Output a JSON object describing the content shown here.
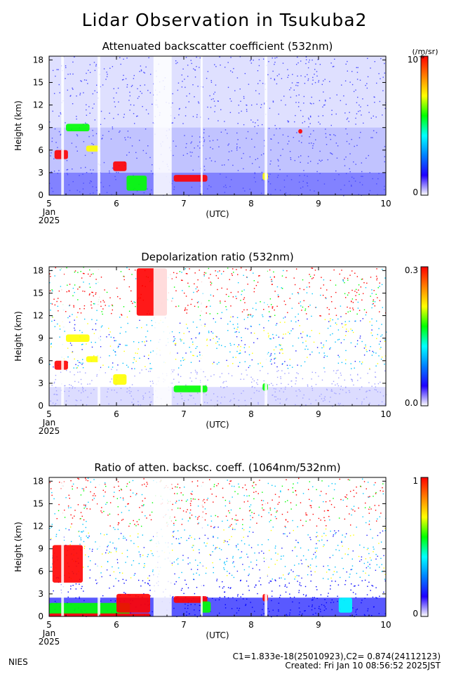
{
  "main_title": "Lidar Observation in Tsukuba2",
  "footer": {
    "org": "NIES",
    "calib": "C1=1.833e-18(25010923),C2= 0.874(24112123)",
    "created": "Created: Fri Jan 10 08:56:52 2025JST"
  },
  "colors": {
    "scale": [
      "#ffffff",
      "#c8c8ff",
      "#0000ff",
      "#00ffff",
      "#00ff00",
      "#ffff00",
      "#ff0000"
    ]
  },
  "chart_data": [
    {
      "type": "heatmap",
      "title": "Attenuated backscatter coefficient (532nm)",
      "ylabel": "Height (km)",
      "xlabel": "(UTC)",
      "x_ticks": [
        "5",
        "6",
        "7",
        "8",
        "9",
        "10"
      ],
      "x_sublabels": [
        "Jan",
        "2025"
      ],
      "y_ticks": [
        "0",
        "3",
        "6",
        "9",
        "12",
        "15",
        "18"
      ],
      "xlim": [
        5,
        10
      ],
      "ylim": [
        0,
        18.5
      ],
      "colorbar": {
        "top_label": "10",
        "bottom_label": "0",
        "unit": "(/m/sr)",
        "exponent": "-6"
      },
      "features": [
        {
          "x0": 5.08,
          "x1": 5.28,
          "y0": 4.8,
          "y1": 6.0,
          "level": 6
        },
        {
          "x0": 5.25,
          "x1": 5.6,
          "y0": 8.5,
          "y1": 9.5,
          "level": 4
        },
        {
          "x0": 5.55,
          "x1": 5.75,
          "y0": 5.8,
          "y1": 6.6,
          "level": 5
        },
        {
          "x0": 5.95,
          "x1": 6.15,
          "y0": 3.2,
          "y1": 4.5,
          "level": 6
        },
        {
          "x0": 6.15,
          "x1": 6.45,
          "y0": 0.6,
          "y1": 2.6,
          "level": 4
        },
        {
          "x0": 6.85,
          "x1": 7.35,
          "y0": 1.8,
          "y1": 2.7,
          "level": 6
        },
        {
          "x0": 8.17,
          "x1": 8.25,
          "y0": 2.0,
          "y1": 3.0,
          "level": 5
        },
        {
          "x0": 8.7,
          "x1": 8.76,
          "y0": 8.2,
          "y1": 8.8,
          "level": 6
        }
      ],
      "gaps": [
        [
          5.18,
          5.22
        ],
        [
          5.72,
          5.76
        ],
        [
          6.55,
          6.82
        ],
        [
          7.25,
          7.28
        ],
        [
          8.2,
          8.24
        ]
      ]
    },
    {
      "type": "heatmap",
      "title": "Depolarization ratio (532nm)",
      "ylabel": "Height (km)",
      "xlabel": "(UTC)",
      "x_ticks": [
        "5",
        "6",
        "7",
        "8",
        "9",
        "10"
      ],
      "x_sublabels": [
        "Jan",
        "2025"
      ],
      "y_ticks": [
        "0",
        "3",
        "6",
        "9",
        "12",
        "15",
        "18"
      ],
      "xlim": [
        5,
        10
      ],
      "ylim": [
        0,
        18.5
      ],
      "colorbar": {
        "top_label": "0.3",
        "bottom_label": "0.0",
        "unit": "",
        "exponent": ""
      },
      "features": [
        {
          "x0": 5.08,
          "x1": 5.28,
          "y0": 4.8,
          "y1": 6.0,
          "level": 6
        },
        {
          "x0": 5.25,
          "x1": 5.6,
          "y0": 8.5,
          "y1": 9.5,
          "level": 5
        },
        {
          "x0": 5.55,
          "x1": 5.75,
          "y0": 5.8,
          "y1": 6.6,
          "level": 5
        },
        {
          "x0": 5.95,
          "x1": 6.15,
          "y0": 2.8,
          "y1": 4.2,
          "level": 5
        },
        {
          "x0": 6.3,
          "x1": 6.75,
          "y0": 12.0,
          "y1": 18.3,
          "level": 6
        },
        {
          "x0": 6.85,
          "x1": 7.35,
          "y0": 1.8,
          "y1": 2.7,
          "level": 4
        },
        {
          "x0": 8.17,
          "x1": 8.25,
          "y0": 2.0,
          "y1": 3.0,
          "level": 4
        }
      ],
      "gaps": [
        [
          5.18,
          5.22
        ],
        [
          5.72,
          5.76
        ],
        [
          6.55,
          6.82
        ],
        [
          7.25,
          7.28
        ],
        [
          8.2,
          8.24
        ]
      ]
    },
    {
      "type": "heatmap",
      "title": "Ratio of atten. backsc. coeff. (1064nm/532nm)",
      "ylabel": "Height (km)",
      "xlabel": "(UTC)",
      "x_ticks": [
        "5",
        "6",
        "7",
        "8",
        "9",
        "10"
      ],
      "x_sublabels": [
        "Jan",
        "2025"
      ],
      "y_ticks": [
        "0",
        "3",
        "6",
        "9",
        "12",
        "15",
        "18"
      ],
      "xlim": [
        5,
        10
      ],
      "ylim": [
        0,
        18.5
      ],
      "colorbar": {
        "top_label": "1",
        "bottom_label": "0",
        "unit": "",
        "exponent": ""
      },
      "features": [
        {
          "x0": 5.05,
          "x1": 5.5,
          "y0": 4.5,
          "y1": 9.5,
          "level": 6
        },
        {
          "x0": 5.0,
          "x1": 6.2,
          "y0": 0.3,
          "y1": 1.8,
          "level": 4
        },
        {
          "x0": 5.0,
          "x1": 6.5,
          "y0": 0.0,
          "y1": 0.4,
          "level": 6
        },
        {
          "x0": 6.0,
          "x1": 6.5,
          "y0": 0.5,
          "y1": 3.0,
          "level": 6
        },
        {
          "x0": 6.85,
          "x1": 7.35,
          "y0": 1.8,
          "y1": 2.7,
          "level": 6
        },
        {
          "x0": 7.25,
          "x1": 7.4,
          "y0": 0.5,
          "y1": 2.0,
          "level": 4
        },
        {
          "x0": 8.17,
          "x1": 8.25,
          "y0": 2.0,
          "y1": 3.0,
          "level": 6
        },
        {
          "x0": 9.3,
          "x1": 9.5,
          "y0": 0.5,
          "y1": 2.5,
          "level": 3
        }
      ],
      "gaps": [
        [
          5.18,
          5.22
        ],
        [
          5.72,
          5.76
        ],
        [
          6.55,
          6.82
        ],
        [
          7.25,
          7.28
        ],
        [
          8.2,
          8.24
        ]
      ]
    }
  ]
}
